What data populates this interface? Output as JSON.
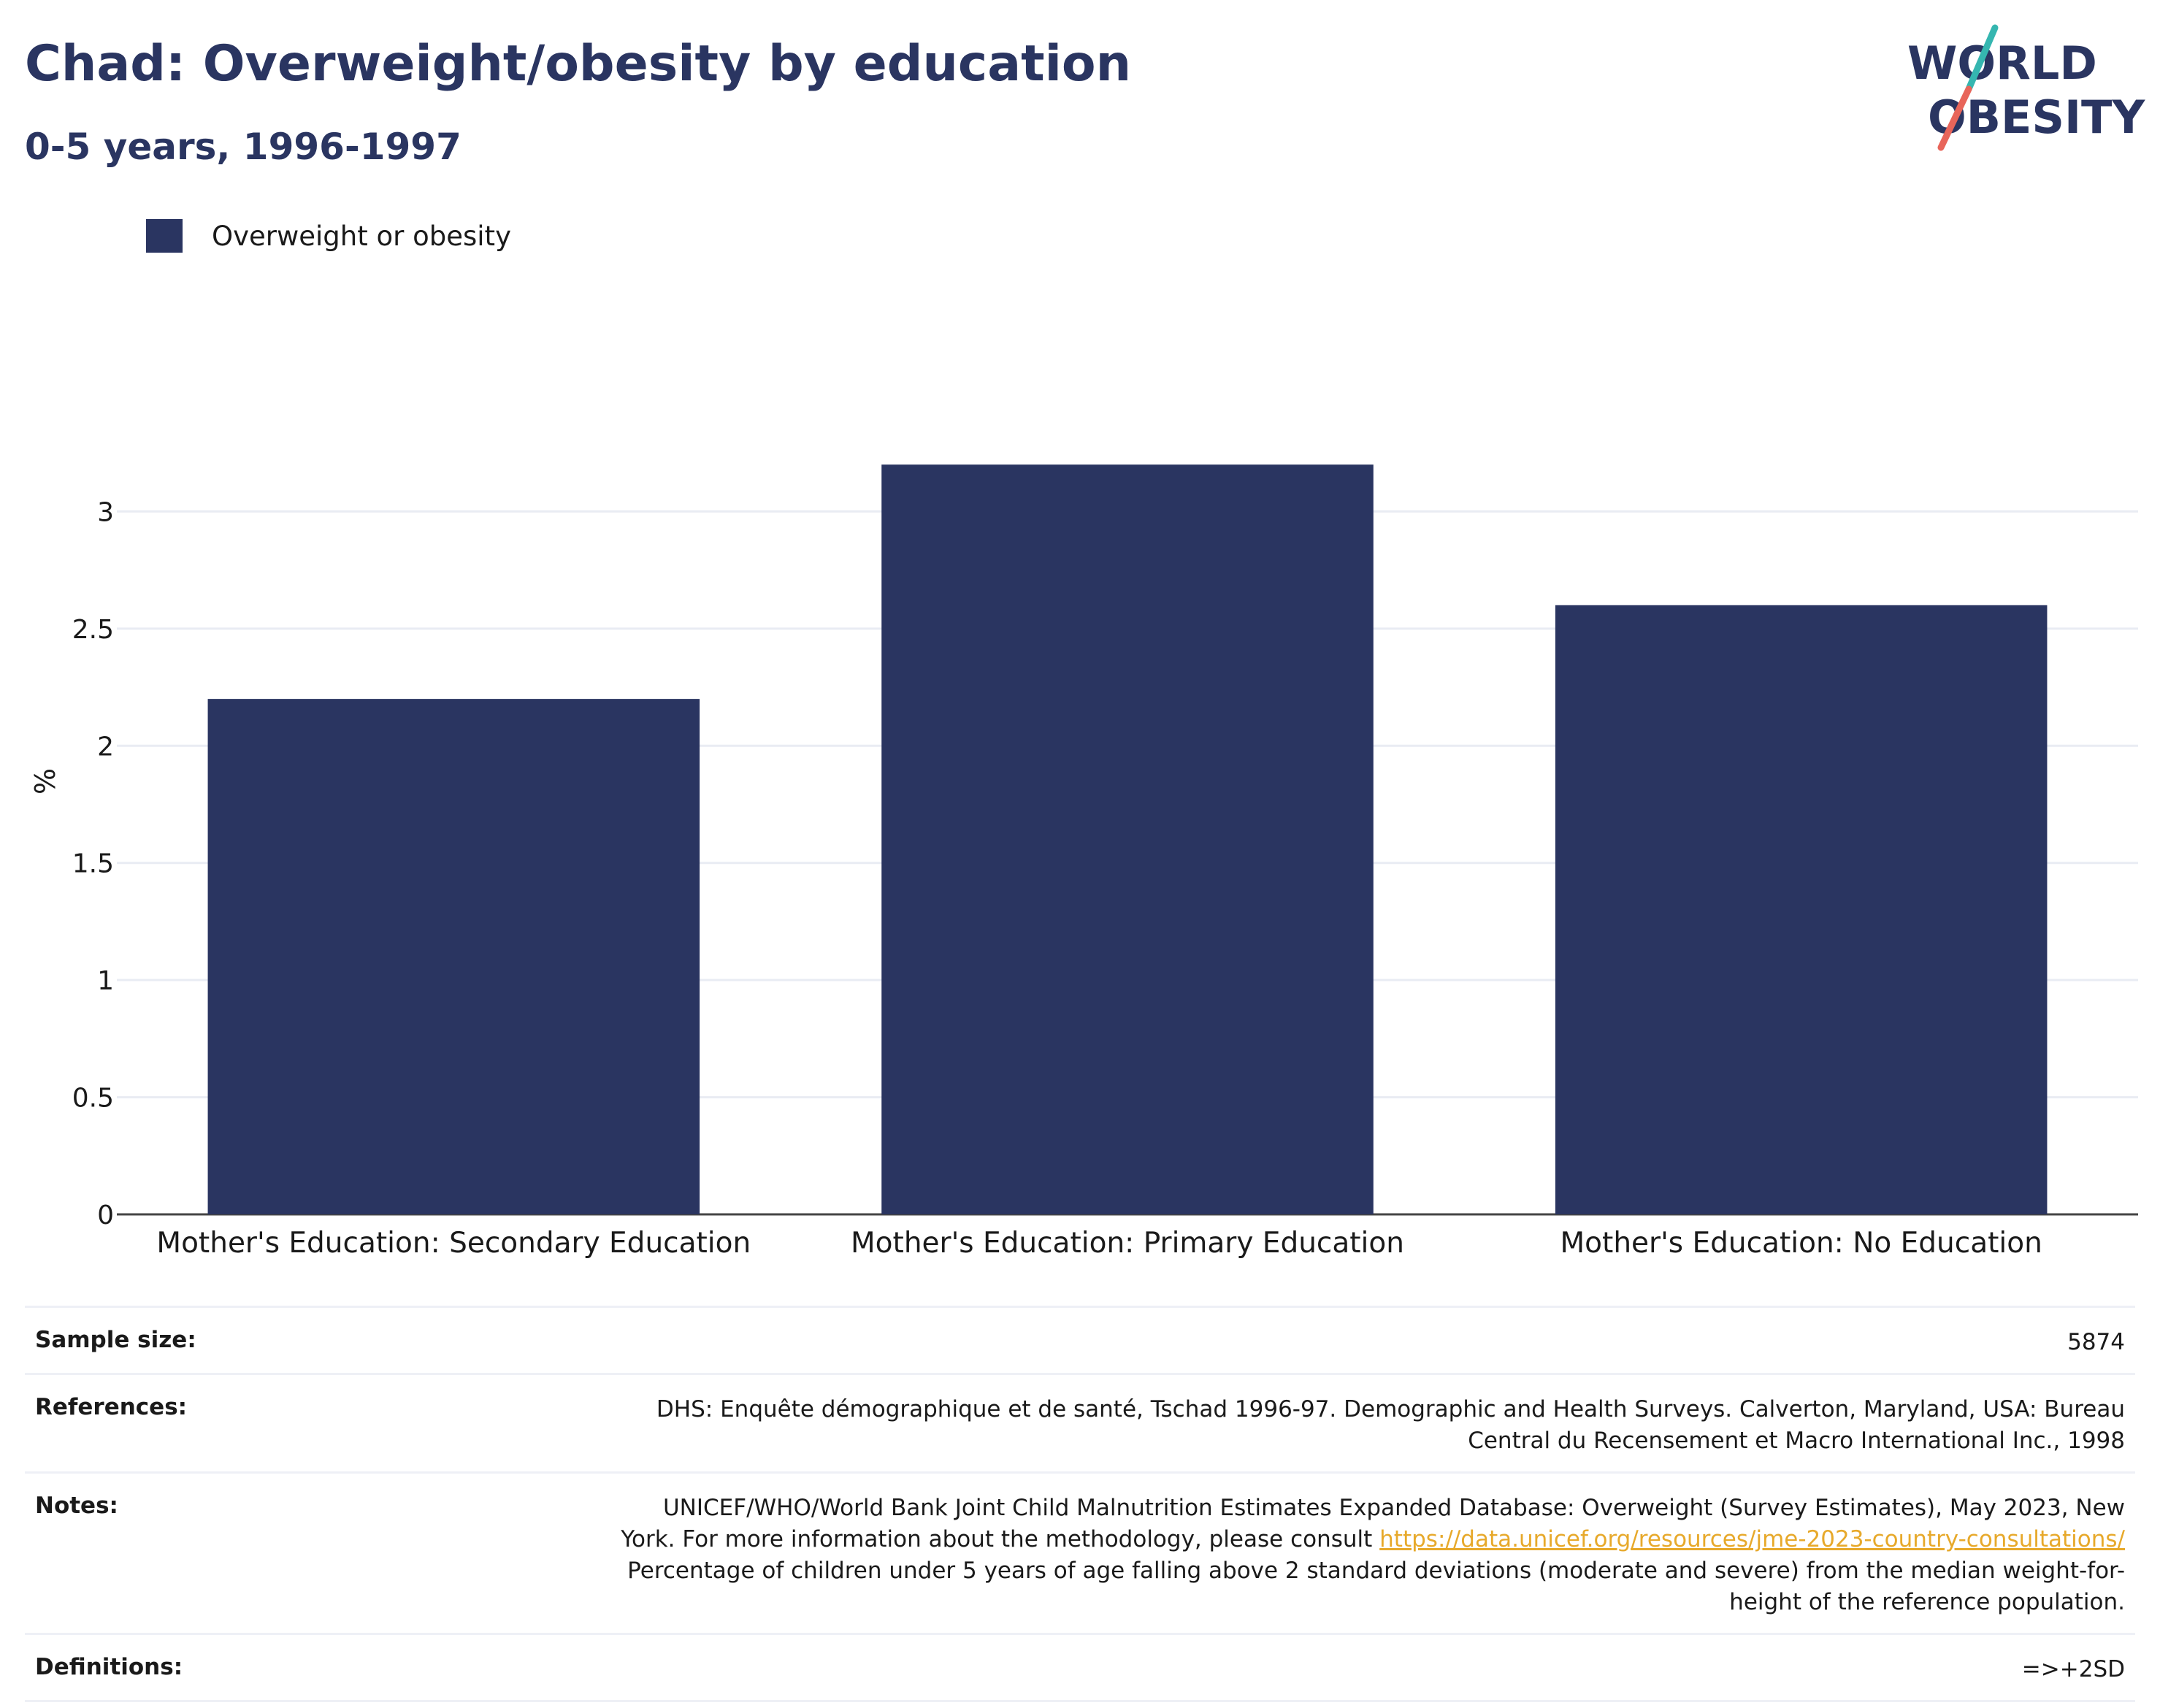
{
  "header": {
    "title": "Chad: Overweight/obesity by education",
    "subtitle": "0-5 years, 1996-1997"
  },
  "logo": {
    "line1": "WORLD",
    "line2": "OBESITY"
  },
  "chart_data": {
    "type": "bar",
    "categories": [
      "Mother's Education: Secondary Education",
      "Mother's Education: Primary Education",
      "Mother's Education: No Education"
    ],
    "series": [
      {
        "name": "Overweight or obesity",
        "values": [
          2.2,
          3.2,
          2.6
        ],
        "color": "#2a3561"
      }
    ],
    "ylabel": "%",
    "ylim": [
      0,
      3.5
    ],
    "yticks": [
      0,
      0.5,
      1,
      1.5,
      2,
      2.5,
      3
    ],
    "ytick_labels": [
      "0",
      "0.5",
      "1",
      "1.5",
      "2",
      "2.5",
      "3"
    ],
    "grid": true,
    "legend_position": "top-left"
  },
  "meta": {
    "sample_size_label": "Sample size:",
    "sample_size_value": "5874",
    "references_label": "References:",
    "references_value": "DHS: Enquête démographique et de santé, Tschad 1996-97. Demographic and Health Surveys. Calverton, Maryland, USA: Bureau Central du Recensement et Macro International Inc., 1998",
    "notes_label": "Notes:",
    "notes_text_1": "UNICEF/WHO/World Bank Joint Child Malnutrition Estimates Expanded Database: Overweight (Survey Estimates), May 2023, New York. For more information about the methodology, please consult ",
    "notes_link": "https://data.unicef.org/resources/jme-2023-country-consultations/",
    "notes_text_2": " Percentage of children under 5 years of age falling above 2 standard deviations (moderate and severe) from the median weight-for-height of the reference population.",
    "definitions_label": "Definitions:",
    "definitions_value": "=>+2SD"
  },
  "colors": {
    "navy": "#2a3561",
    "teal": "#35b6b0",
    "coral": "#e8655a",
    "link": "#e7a92b"
  }
}
